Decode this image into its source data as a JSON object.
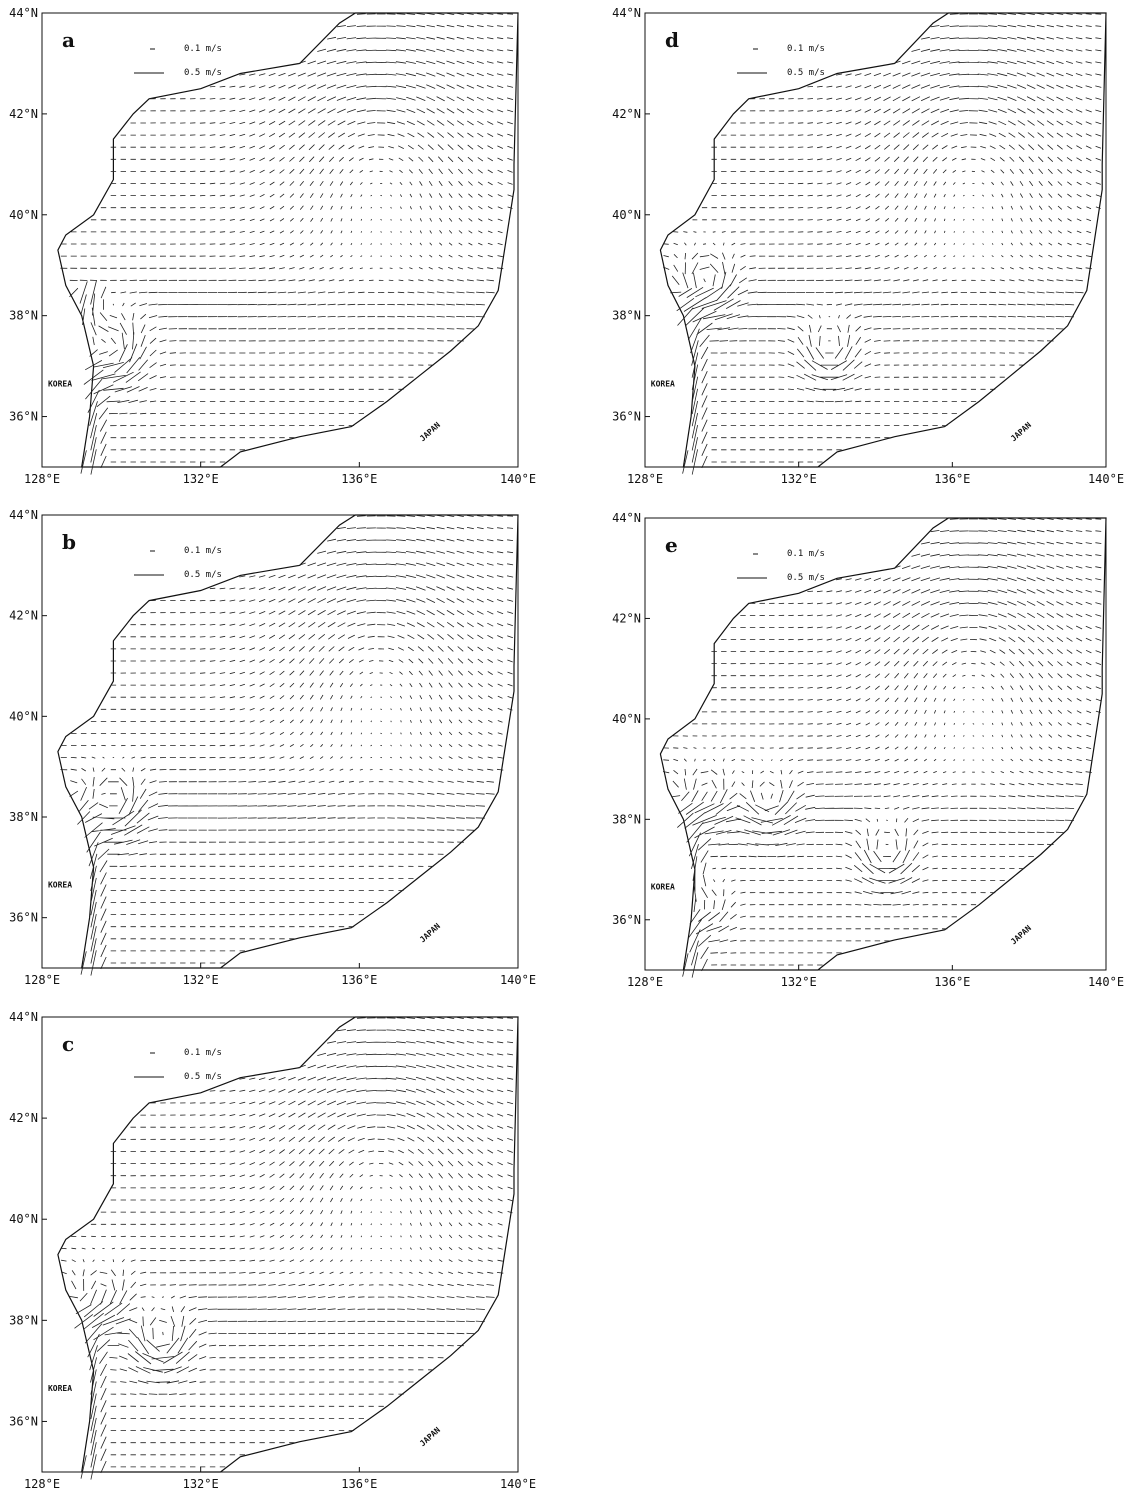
{
  "panels": [
    {
      "label": "a"
    },
    {
      "label": "b"
    },
    {
      "label": "c"
    },
    {
      "label": "d"
    },
    {
      "label": "e"
    }
  ],
  "scale_labels": [
    "0.1 m/s",
    "0.5 m/s"
  ],
  "x_tick_labels": [
    "128°E",
    "132°E",
    "136°E",
    "140°E"
  ],
  "y_tick_labels": [
    "36°N",
    "38°N",
    "40°N",
    "42°N",
    "44°N"
  ],
  "place_labels": {
    "korea": "KOREA",
    "japan": "JAPAN"
  }
}
